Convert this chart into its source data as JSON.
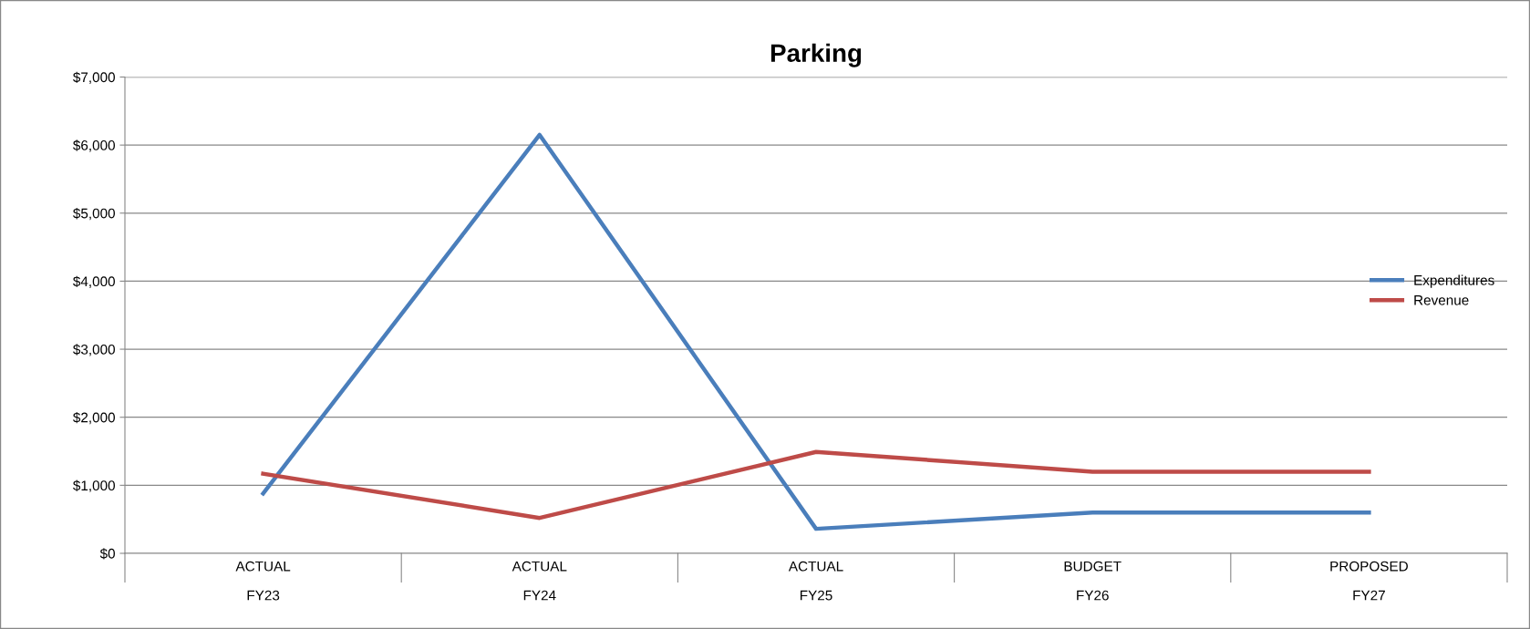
{
  "chart_data": {
    "type": "line",
    "title": "Parking",
    "categories": [
      "ACTUAL\nFY23",
      "ACTUAL\nFY24",
      "ACTUAL\nFY25",
      "BUDGET\nFY26",
      "PROPOSED\nFY27"
    ],
    "series": [
      {
        "name": "Expenditures",
        "color": "#4a7ebb",
        "values": [
          880,
          6150,
          360,
          600,
          600
        ]
      },
      {
        "name": "Revenue",
        "color": "#be4b48",
        "values": [
          1170,
          520,
          1490,
          1200,
          1200
        ]
      }
    ],
    "ylim": [
      0,
      7000
    ],
    "yticks": [
      {
        "value": 0,
        "label": "$0"
      },
      {
        "value": 1000,
        "label": "$1,000"
      },
      {
        "value": 2000,
        "label": "$2,000"
      },
      {
        "value": 3000,
        "label": "$3,000"
      },
      {
        "value": 4000,
        "label": "$4,000"
      },
      {
        "value": 5000,
        "label": "$5,000"
      },
      {
        "value": 6000,
        "label": "$6,000"
      },
      {
        "value": 7000,
        "label": "$7,000"
      }
    ],
    "grid": "y",
    "legend": "right",
    "marker": "none",
    "line_style": "solid"
  }
}
